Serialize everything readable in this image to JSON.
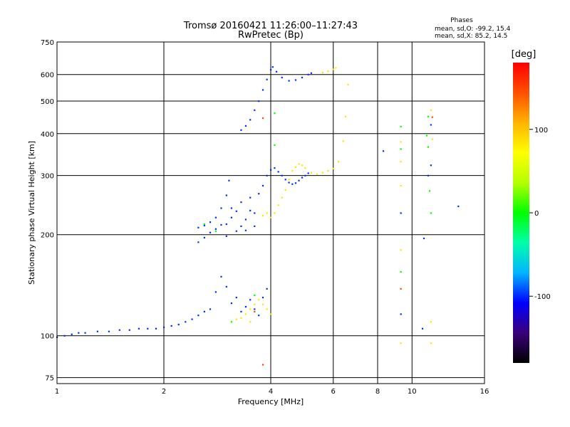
{
  "chart_data": {
    "type": "scatter",
    "title": "Tromsø 20160421 11:26:00–11:27:43",
    "subtitle": "RwPretec (Bp)",
    "xlabel": "Frequency [MHz]",
    "ylabel": "Stationary phase Virtual Height [km]",
    "x_scale": "log",
    "y_scale": "log",
    "xlim": [
      1,
      16
    ],
    "ylim": [
      72,
      750
    ],
    "x_ticks": [
      1,
      2,
      4,
      6,
      8,
      10,
      16
    ],
    "x_tick_labels": [
      "1",
      "2",
      "4",
      "6",
      "8",
      "10",
      "16"
    ],
    "y_ticks": [
      75,
      100,
      200,
      300,
      400,
      500,
      600,
      750
    ],
    "y_tick_labels": [
      "75",
      "100",
      "200",
      "300",
      "400",
      "500",
      "600",
      "750"
    ],
    "grid": true,
    "phases": {
      "title": "Phases",
      "line1": "mean, sd,O: -99.2, 15.4",
      "line2": "mean, sd,X:  85.2, 14.5"
    },
    "colorbar": {
      "label": "[deg]",
      "range": [
        -180,
        180
      ],
      "ticks": [
        -100,
        0,
        100
      ],
      "tick_labels": [
        "-100",
        "0",
        "100"
      ],
      "stops": [
        "#000000",
        "#3a007a",
        "#0000ff",
        "#00b4ff",
        "#00ffaa",
        "#00ff00",
        "#b4ff00",
        "#ffff00",
        "#ffb400",
        "#ff5000",
        "#ff0000"
      ]
    },
    "series": [
      {
        "mode": "O",
        "color_value": -99,
        "points": [
          [
            1.0,
            99
          ],
          [
            1.05,
            100
          ],
          [
            1.1,
            101
          ],
          [
            1.15,
            102
          ],
          [
            1.2,
            102
          ],
          [
            1.3,
            103
          ],
          [
            1.4,
            103
          ],
          [
            1.5,
            104
          ],
          [
            1.6,
            104
          ],
          [
            1.7,
            105
          ],
          [
            1.8,
            105
          ],
          [
            1.9,
            105
          ],
          [
            2.0,
            106
          ],
          [
            2.1,
            107
          ],
          [
            2.2,
            108
          ],
          [
            2.3,
            110
          ],
          [
            2.4,
            112
          ],
          [
            2.5,
            115
          ],
          [
            2.6,
            118
          ],
          [
            2.7,
            120
          ],
          [
            2.5,
            190
          ],
          [
            2.6,
            196
          ],
          [
            2.7,
            203
          ],
          [
            2.8,
            208
          ],
          [
            2.9,
            214
          ],
          [
            2.5,
            210
          ],
          [
            2.6,
            213
          ],
          [
            2.7,
            218
          ],
          [
            2.8,
            225
          ],
          [
            2.9,
            240
          ],
          [
            3.0,
            262
          ],
          [
            3.05,
            290
          ],
          [
            3.0,
            215
          ],
          [
            3.1,
            225
          ],
          [
            3.2,
            235
          ],
          [
            3.3,
            212
          ],
          [
            3.4,
            222
          ],
          [
            3.5,
            236
          ],
          [
            3.0,
            198
          ],
          [
            3.2,
            205
          ],
          [
            3.4,
            206
          ],
          [
            3.6,
            212
          ],
          [
            3.1,
            240
          ],
          [
            3.3,
            250
          ],
          [
            3.5,
            258
          ],
          [
            3.6,
            232
          ],
          [
            3.7,
            265
          ],
          [
            3.8,
            280
          ],
          [
            3.9,
            300
          ],
          [
            4.0,
            312
          ],
          [
            4.1,
            316
          ],
          [
            4.2,
            308
          ],
          [
            4.3,
            300
          ],
          [
            4.4,
            292
          ],
          [
            4.5,
            286
          ],
          [
            4.6,
            283
          ],
          [
            4.7,
            285
          ],
          [
            4.8,
            290
          ],
          [
            4.9,
            296
          ],
          [
            5.0,
            300
          ],
          [
            5.1,
            305
          ],
          [
            3.3,
            410
          ],
          [
            3.4,
            422
          ],
          [
            3.5,
            440
          ],
          [
            3.6,
            470
          ],
          [
            3.7,
            500
          ],
          [
            3.8,
            540
          ],
          [
            3.9,
            580
          ],
          [
            4.0,
            620
          ],
          [
            4.05,
            632
          ],
          [
            4.15,
            612
          ],
          [
            4.3,
            588
          ],
          [
            4.5,
            575
          ],
          [
            4.7,
            578
          ],
          [
            4.9,
            588
          ],
          [
            5.1,
            600
          ],
          [
            5.2,
            606
          ],
          [
            2.8,
            135
          ],
          [
            2.9,
            150
          ],
          [
            3.0,
            140
          ],
          [
            3.1,
            125
          ],
          [
            3.2,
            130
          ],
          [
            3.3,
            118
          ],
          [
            3.4,
            122
          ],
          [
            3.5,
            128
          ],
          [
            3.6,
            120
          ],
          [
            3.7,
            115
          ],
          [
            3.8,
            130
          ],
          [
            3.9,
            138
          ],
          [
            9.3,
            116
          ],
          [
            9.3,
            232
          ],
          [
            11.3,
            425
          ],
          [
            11.3,
            322
          ],
          [
            13.5,
            243
          ],
          [
            10.8,
            195
          ],
          [
            10.7,
            105
          ],
          [
            8.3,
            355
          ],
          [
            11.1,
            300
          ]
        ]
      },
      {
        "mode": "X",
        "color_value": 85,
        "points": [
          [
            3.2,
            112
          ],
          [
            3.3,
            113
          ],
          [
            3.4,
            116
          ],
          [
            3.5,
            120
          ],
          [
            3.6,
            124
          ],
          [
            3.7,
            128
          ],
          [
            3.8,
            124
          ],
          [
            3.9,
            120
          ],
          [
            4.0,
            116
          ],
          [
            3.5,
            110
          ],
          [
            3.8,
            228
          ],
          [
            3.9,
            232
          ],
          [
            4.0,
            225
          ],
          [
            4.1,
            232
          ],
          [
            4.2,
            245
          ],
          [
            4.3,
            258
          ],
          [
            4.4,
            272
          ],
          [
            4.5,
            292
          ],
          [
            4.6,
            310
          ],
          [
            4.7,
            318
          ],
          [
            4.8,
            325
          ],
          [
            4.9,
            322
          ],
          [
            5.0,
            316
          ],
          [
            5.2,
            306
          ],
          [
            5.4,
            303
          ],
          [
            5.6,
            306
          ],
          [
            5.8,
            310
          ],
          [
            6.0,
            315
          ],
          [
            6.2,
            330
          ],
          [
            6.4,
            380
          ],
          [
            6.5,
            450
          ],
          [
            6.6,
            560
          ],
          [
            5.6,
            608
          ],
          [
            5.8,
            614
          ],
          [
            6.0,
            622
          ],
          [
            6.1,
            628
          ],
          [
            9.3,
            95
          ],
          [
            9.3,
            180
          ],
          [
            9.3,
            280
          ],
          [
            9.3,
            330
          ],
          [
            9.3,
            378
          ],
          [
            11.3,
            110
          ],
          [
            11.3,
            95
          ],
          [
            11.3,
            470
          ],
          [
            11.4,
            385
          ]
        ]
      },
      {
        "mode": "other",
        "color_value": 0,
        "points": [
          [
            2.6,
            215
          ],
          [
            2.8,
            205
          ],
          [
            3.1,
            110
          ],
          [
            3.6,
            132
          ],
          [
            4.1,
            460
          ],
          [
            4.1,
            370
          ],
          [
            9.3,
            155
          ],
          [
            9.3,
            420
          ],
          [
            9.3,
            360
          ],
          [
            11.1,
            450
          ],
          [
            11.0,
            395
          ],
          [
            11.1,
            365
          ],
          [
            11.2,
            270
          ],
          [
            11.3,
            232
          ]
        ]
      },
      {
        "mode": "other",
        "color_value": 150,
        "points": [
          [
            3.8,
            82
          ],
          [
            3.8,
            445
          ],
          [
            3.6,
            118
          ],
          [
            9.3,
            138
          ],
          [
            11.4,
            448
          ]
        ]
      }
    ]
  }
}
